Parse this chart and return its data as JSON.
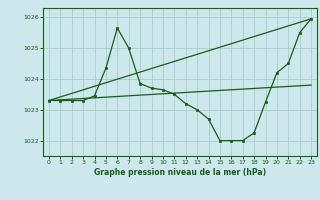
{
  "title": "Graphe pression niveau de la mer (hPa)",
  "background_color": "#cce8ec",
  "grid_color": "#aacccc",
  "line_color": "#1a5c1a",
  "xlim": [
    -0.5,
    23.5
  ],
  "ylim": [
    1021.5,
    1026.3
  ],
  "yticks": [
    1022,
    1023,
    1024,
    1025,
    1026
  ],
  "xticks": [
    0,
    1,
    2,
    3,
    4,
    5,
    6,
    7,
    8,
    9,
    10,
    11,
    12,
    13,
    14,
    15,
    16,
    17,
    18,
    19,
    20,
    21,
    22,
    23
  ],
  "series1": {
    "x": [
      0,
      1,
      2,
      3,
      4,
      5,
      6,
      7,
      8,
      9,
      10,
      11,
      12,
      13,
      14,
      15,
      16,
      17,
      18,
      19,
      20,
      21,
      22,
      23
    ],
    "y": [
      1023.3,
      1023.3,
      1023.3,
      1023.3,
      1023.45,
      1024.35,
      1025.65,
      1025.0,
      1023.85,
      1023.7,
      1023.65,
      1023.5,
      1023.2,
      1023.0,
      1022.7,
      1022.0,
      1022.0,
      1022.0,
      1022.25,
      1023.25,
      1024.2,
      1024.5,
      1025.5,
      1025.95
    ]
  },
  "series2": {
    "x": [
      0,
      23
    ],
    "y": [
      1023.3,
      1025.95
    ]
  },
  "series3": {
    "x": [
      0,
      23
    ],
    "y": [
      1023.3,
      1023.8
    ]
  }
}
